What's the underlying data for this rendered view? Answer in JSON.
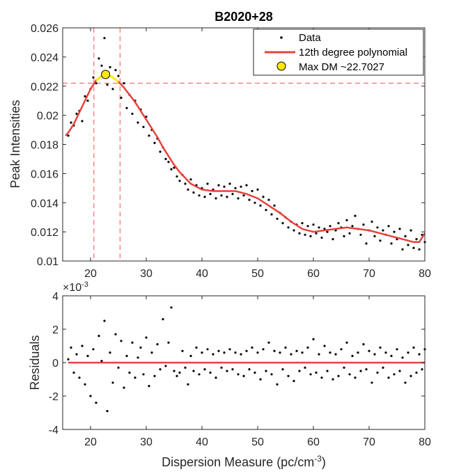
{
  "chart_data": [
    {
      "type": "scatter",
      "title": "B2020+28",
      "xlabel": "",
      "ylabel": "Peak Intensities",
      "xlim": [
        15,
        80
      ],
      "ylim": [
        0.01,
        0.026
      ],
      "xticks": [
        20,
        30,
        40,
        50,
        60,
        70,
        80
      ],
      "yticks": [
        0.01,
        0.012,
        0.014,
        0.016,
        0.018,
        0.02,
        0.022,
        0.024,
        0.026
      ],
      "ytick_labels": [
        "0.01",
        "0.012",
        "0.014",
        "0.016",
        "0.018",
        "0.02",
        "0.022",
        "0.024",
        "0.026"
      ],
      "legend_position": "top-right",
      "legend": [
        "Data",
        "12th degree polynomial",
        "Max DM ~22.7027"
      ],
      "vlines": [
        20.6,
        25.3
      ],
      "hline": 0.0222,
      "max_point": {
        "x": 22.7027,
        "y": 0.0228
      },
      "series": [
        {
          "name": "Data",
          "kind": "scatter",
          "color": "#000000",
          "x": [
            16.0,
            16.5,
            17.0,
            17.5,
            18.0,
            18.5,
            19.0,
            19.5,
            20.0,
            20.5,
            21.0,
            21.5,
            22.0,
            22.5,
            23.0,
            23.5,
            24.0,
            24.5,
            25.0,
            25.5,
            26.0,
            26.5,
            27.0,
            27.5,
            28.0,
            28.5,
            29.0,
            29.5,
            30.0,
            30.5,
            31.0,
            31.5,
            32.0,
            32.5,
            33.0,
            33.5,
            34.0,
            34.5,
            35.0,
            35.5,
            36.0,
            36.5,
            37.0,
            37.5,
            38.0,
            38.5,
            39.0,
            39.5,
            40.0,
            40.5,
            41.0,
            41.5,
            42.0,
            42.5,
            43.0,
            43.5,
            44.0,
            44.5,
            45.0,
            45.5,
            46.0,
            46.5,
            47.0,
            47.5,
            48.0,
            48.5,
            49.0,
            49.5,
            50.0,
            50.5,
            51.0,
            51.5,
            52.0,
            52.5,
            53.0,
            53.5,
            54.0,
            54.5,
            55.0,
            55.5,
            56.0,
            56.5,
            57.0,
            57.5,
            58.0,
            58.5,
            59.0,
            59.5,
            60.0,
            60.5,
            61.0,
            61.5,
            62.0,
            62.5,
            63.0,
            63.5,
            64.0,
            64.5,
            65.0,
            65.5,
            66.0,
            66.5,
            67.0,
            67.5,
            68.0,
            68.5,
            69.0,
            69.5,
            70.0,
            70.5,
            71.0,
            71.5,
            72.0,
            72.5,
            73.0,
            73.5,
            74.0,
            74.5,
            75.0,
            75.5,
            76.0,
            76.5,
            77.0,
            77.5,
            78.0,
            78.5,
            79.0,
            79.5,
            80.0
          ],
          "y": [
            0.0186,
            0.0195,
            0.0193,
            0.0201,
            0.0203,
            0.0196,
            0.0213,
            0.021,
            0.0218,
            0.0226,
            0.0222,
            0.0239,
            0.0234,
            0.0253,
            0.0221,
            0.0233,
            0.0218,
            0.0231,
            0.0227,
            0.0212,
            0.0222,
            0.0205,
            0.0214,
            0.0201,
            0.021,
            0.0195,
            0.0204,
            0.0192,
            0.0199,
            0.0186,
            0.019,
            0.0181,
            0.0184,
            0.0175,
            0.0178,
            0.017,
            0.0168,
            0.0163,
            0.0164,
            0.0158,
            0.0155,
            0.0159,
            0.0153,
            0.0149,
            0.0156,
            0.0147,
            0.0152,
            0.0145,
            0.015,
            0.0144,
            0.0153,
            0.0146,
            0.0149,
            0.0143,
            0.0152,
            0.0145,
            0.0151,
            0.0144,
            0.0153,
            0.0146,
            0.015,
            0.0143,
            0.0151,
            0.0145,
            0.0152,
            0.0142,
            0.0148,
            0.014,
            0.0149,
            0.0138,
            0.0144,
            0.0135,
            0.0142,
            0.0132,
            0.0138,
            0.0129,
            0.0133,
            0.0126,
            0.013,
            0.0123,
            0.0127,
            0.0121,
            0.0125,
            0.0119,
            0.0126,
            0.0118,
            0.0124,
            0.0117,
            0.0125,
            0.0119,
            0.0123,
            0.0116,
            0.0122,
            0.012,
            0.0124,
            0.0115,
            0.0121,
            0.0126,
            0.0123,
            0.0117,
            0.0128,
            0.0119,
            0.0124,
            0.0131,
            0.0122,
            0.0118,
            0.0125,
            0.0112,
            0.0121,
            0.0127,
            0.0117,
            0.0123,
            0.0114,
            0.0121,
            0.0118,
            0.0124,
            0.0112,
            0.012,
            0.0115,
            0.0122,
            0.0108,
            0.0117,
            0.0111,
            0.0121,
            0.0109,
            0.0115,
            0.0108,
            0.0118,
            0.0113
          ]
        },
        {
          "name": "12th degree polynomial",
          "kind": "line",
          "color": "#e8413c",
          "x": [
            15.5,
            16,
            17,
            18,
            19,
            20,
            21,
            22,
            22.7,
            23,
            24,
            25,
            26,
            27,
            28,
            29,
            30,
            31,
            32,
            33,
            34,
            35,
            36,
            37,
            38,
            39,
            40,
            42,
            44,
            46,
            48,
            50,
            52,
            54,
            56,
            58,
            60,
            62,
            64,
            66,
            68,
            70,
            72,
            74,
            76,
            78,
            79,
            80
          ],
          "y": [
            0.0186,
            0.0188,
            0.0194,
            0.0202,
            0.021,
            0.0218,
            0.0224,
            0.0227,
            0.0228,
            0.0228,
            0.0226,
            0.0223,
            0.0219,
            0.0214,
            0.0209,
            0.0203,
            0.0197,
            0.0191,
            0.0185,
            0.0178,
            0.0172,
            0.0166,
            0.0161,
            0.0157,
            0.0153,
            0.0151,
            0.0149,
            0.0148,
            0.0148,
            0.0148,
            0.0146,
            0.0143,
            0.0138,
            0.0133,
            0.0127,
            0.0122,
            0.012,
            0.0121,
            0.0122,
            0.0123,
            0.0122,
            0.0121,
            0.0119,
            0.0117,
            0.0115,
            0.0113,
            0.0113,
            0.0119
          ]
        }
      ]
    },
    {
      "type": "scatter",
      "title": "",
      "xlabel": "Dispersion Measure (pc/cm⁻³)",
      "xlabel_main": "Dispersion Measure (pc/cm",
      "xlabel_sup": "-3",
      "xlabel_end": ")",
      "ylabel": "Residuals",
      "exponent_label": "×10",
      "exponent_sup": "-3",
      "xlim": [
        15,
        80
      ],
      "ylim": [
        -4,
        4
      ],
      "xticks": [
        20,
        30,
        40,
        50,
        60,
        70,
        80
      ],
      "yticks": [
        -4,
        -2,
        0,
        2,
        4
      ],
      "zero_line_color": "#e8413c",
      "series": [
        {
          "name": "Residuals",
          "kind": "scatter",
          "color": "#000000",
          "x": [
            16.0,
            16.5,
            17.0,
            17.5,
            18.0,
            18.5,
            19.0,
            19.5,
            20.0,
            20.5,
            21.0,
            21.5,
            22.0,
            22.5,
            23.0,
            23.5,
            24.0,
            24.5,
            25.0,
            25.5,
            26.0,
            26.5,
            27.0,
            27.5,
            28.0,
            28.5,
            29.0,
            29.5,
            30.0,
            30.5,
            31.0,
            31.5,
            32.0,
            32.5,
            33.0,
            33.5,
            34.0,
            34.5,
            35.0,
            35.5,
            36.0,
            36.5,
            37.0,
            37.5,
            38.0,
            38.5,
            39.0,
            39.5,
            40.0,
            40.5,
            41.0,
            41.5,
            42.0,
            42.5,
            43.0,
            43.5,
            44.0,
            44.5,
            45.0,
            45.5,
            46.0,
            46.5,
            47.0,
            47.5,
            48.0,
            48.5,
            49.0,
            49.5,
            50.0,
            50.5,
            51.0,
            51.5,
            52.0,
            52.5,
            53.0,
            53.5,
            54.0,
            54.5,
            55.0,
            55.5,
            56.0,
            56.5,
            57.0,
            57.5,
            58.0,
            58.5,
            59.0,
            59.5,
            60.0,
            60.5,
            61.0,
            61.5,
            62.0,
            62.5,
            63.0,
            63.5,
            64.0,
            64.5,
            65.0,
            65.5,
            66.0,
            66.5,
            67.0,
            67.5,
            68.0,
            68.5,
            69.0,
            69.5,
            70.0,
            70.5,
            71.0,
            71.5,
            72.0,
            72.5,
            73.0,
            73.5,
            74.0,
            74.5,
            75.0,
            75.5,
            76.0,
            76.5,
            77.0,
            77.5,
            78.0,
            78.5,
            79.0,
            79.5,
            80.0
          ],
          "y": [
            0.2,
            0.9,
            -0.6,
            0.5,
            -0.9,
            1.0,
            -1.3,
            0.4,
            -2.0,
            0.8,
            -2.4,
            1.6,
            0.1,
            2.5,
            -2.9,
            0.6,
            -1.2,
            1.7,
            -0.3,
            1.3,
            -1.5,
            0.4,
            -0.6,
            1.2,
            -0.9,
            0.3,
            0.9,
            -0.7,
            1.5,
            -1.4,
            0.6,
            -0.8,
            1.1,
            -0.4,
            2.6,
            -0.2,
            1.2,
            3.3,
            -0.5,
            -0.8,
            -0.6,
            0.7,
            -0.3,
            -1.3,
            0.4,
            -0.5,
            0.9,
            -0.7,
            0.6,
            -0.4,
            0.8,
            -0.6,
            0.5,
            -0.9,
            0.7,
            -0.3,
            0.6,
            -0.5,
            0.8,
            -0.4,
            0.6,
            -0.7,
            0.5,
            -0.8,
            0.7,
            -0.4,
            0.9,
            -0.6,
            0.6,
            -1.0,
            0.8,
            -0.5,
            1.2,
            -0.7,
            0.7,
            -1.3,
            0.6,
            -0.4,
            0.9,
            -0.8,
            0.5,
            -1.1,
            0.7,
            -0.5,
            0.6,
            -0.3,
            0.9,
            -0.7,
            1.4,
            -0.6,
            0.5,
            -0.9,
            1.0,
            -0.5,
            0.6,
            -1.0,
            0.5,
            -0.8,
            0.8,
            -0.3,
            1.2,
            -0.7,
            0.4,
            -0.9,
            0.6,
            -0.5,
            1.1,
            -0.4,
            0.7,
            -1.2,
            0.5,
            -0.6,
            0.9,
            -0.3,
            0.6,
            -0.9,
            0.4,
            -0.7,
            0.8,
            -0.5,
            0.3,
            -1.2,
            0.6,
            -0.8,
            0.9,
            -0.6,
            0.5,
            -0.4,
            0.8
          ]
        }
      ]
    }
  ]
}
